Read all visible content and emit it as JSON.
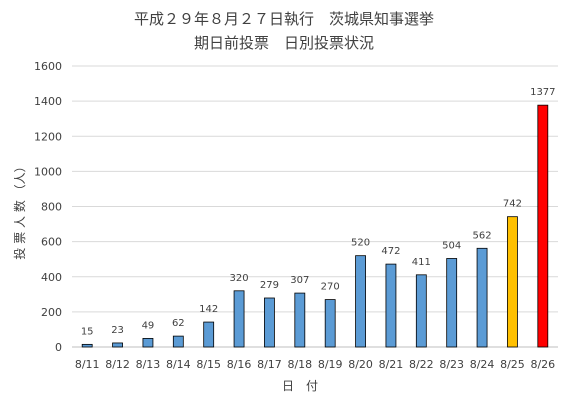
{
  "chart_data": {
    "type": "bar",
    "title": "平成２９年８月２７日執行　茨城県知事選挙",
    "subtitle": "期日前投票　日別投票状況",
    "xlabel": "日　付",
    "ylabel": "投 票 人 数 （人）",
    "ylim": [
      0,
      1600
    ],
    "yticks": [
      0,
      200,
      400,
      600,
      800,
      1000,
      1200,
      1400,
      1600
    ],
    "grid": true,
    "legend": "none",
    "categories": [
      "8/11",
      "8/12",
      "8/13",
      "8/14",
      "8/15",
      "8/16",
      "8/17",
      "8/18",
      "8/19",
      "8/20",
      "8/21",
      "8/22",
      "8/23",
      "8/24",
      "8/25",
      "8/26"
    ],
    "values": [
      15,
      23,
      49,
      62,
      142,
      320,
      279,
      307,
      270,
      520,
      472,
      411,
      504,
      562,
      742,
      1377
    ],
    "colors": [
      "#5b9bd5",
      "#5b9bd5",
      "#5b9bd5",
      "#5b9bd5",
      "#5b9bd5",
      "#5b9bd5",
      "#5b9bd5",
      "#5b9bd5",
      "#5b9bd5",
      "#5b9bd5",
      "#5b9bd5",
      "#5b9bd5",
      "#5b9bd5",
      "#5b9bd5",
      "#ffc000",
      "#ff0000"
    ],
    "bar_outline": "#000000"
  }
}
